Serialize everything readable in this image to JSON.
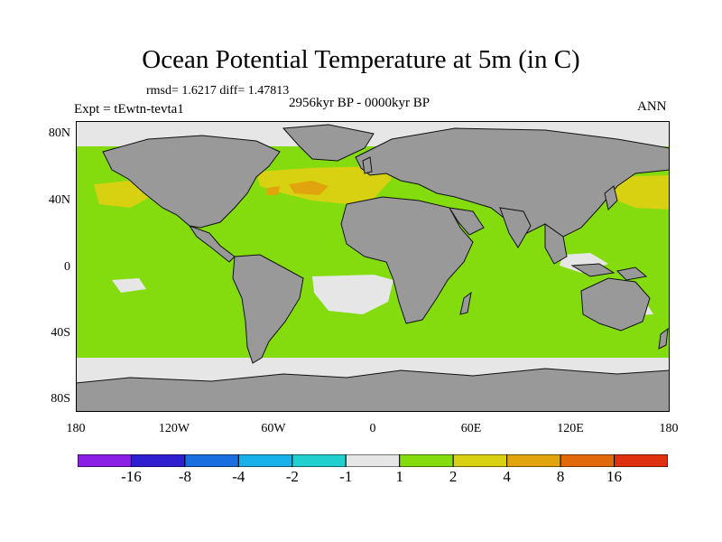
{
  "figure": {
    "title": "Ocean Potential Temperature at 5m (in C)",
    "stats": "rmsd= 1.6217  diff= 1.47813",
    "experiment": "Expt = tEwtn-tevta1",
    "period": "2956kyr BP - 0000kyr BP",
    "season": "ANN"
  },
  "axes": {
    "lat_labels": [
      "80N",
      "40N",
      "0",
      "40S",
      "80S"
    ],
    "lon_labels": [
      "180",
      "120W",
      "60W",
      "0",
      "60E",
      "120E",
      "180"
    ]
  },
  "colorbar": {
    "labels": [
      "-16",
      "-8",
      "-4",
      "-2",
      "-1",
      "1",
      "2",
      "4",
      "8",
      "16"
    ],
    "colors": [
      "#8b1fe6",
      "#2f1fd0",
      "#1a6fe0",
      "#17b0e8",
      "#22cfcf",
      "#e6e6e6",
      "#84dc0f",
      "#d7d112",
      "#e2a40c",
      "#e06a0a",
      "#df3110"
    ]
  },
  "map_colors": {
    "ocean_dominant": "#84dc0f",
    "land": "#999999",
    "near_zero": "#e6e6e6",
    "warm": "#d7d112",
    "warmer": "#e2a40c"
  }
}
